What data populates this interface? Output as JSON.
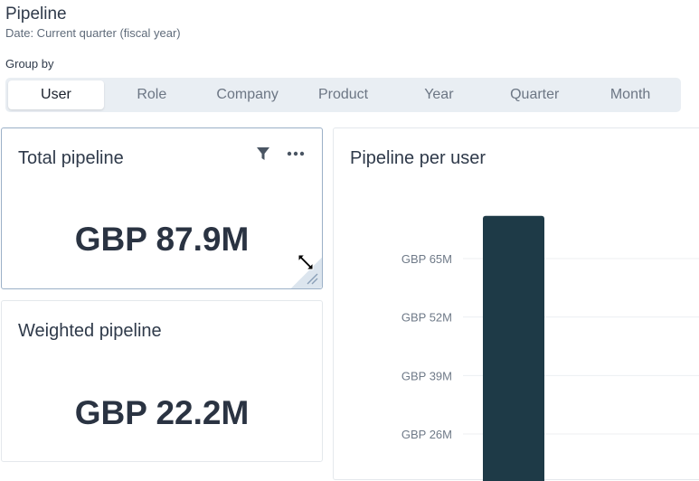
{
  "header": {
    "title": "Pipeline",
    "subtitle": "Date: Current quarter (fiscal year)"
  },
  "group_by": {
    "label": "Group by",
    "options": [
      "User",
      "Role",
      "Company",
      "Product",
      "Year",
      "Quarter",
      "Month"
    ],
    "selected": "User"
  },
  "cards": {
    "total_pipeline": {
      "title": "Total pipeline",
      "value": "GBP 87.9M",
      "tools": [
        "filter-icon",
        "more-icon"
      ]
    },
    "weighted_pipeline": {
      "title": "Weighted pipeline",
      "value": "GBP 22.2M"
    },
    "pipeline_per_user": {
      "title": "Pipeline per user"
    }
  },
  "colors": {
    "bar": "#1e3a47",
    "accent_border": "#9bb0c7"
  },
  "chart_data": {
    "type": "bar",
    "title": "Pipeline per user",
    "y_ticks": [
      {
        "value": 65,
        "label": "GBP 65M"
      },
      {
        "value": 52,
        "label": "GBP 52M"
      },
      {
        "value": 39,
        "label": "GBP 39M"
      },
      {
        "value": 26,
        "label": "GBP 26M"
      }
    ],
    "series": [
      {
        "values": [
          74.5
        ]
      }
    ],
    "unit": "GBP M"
  }
}
